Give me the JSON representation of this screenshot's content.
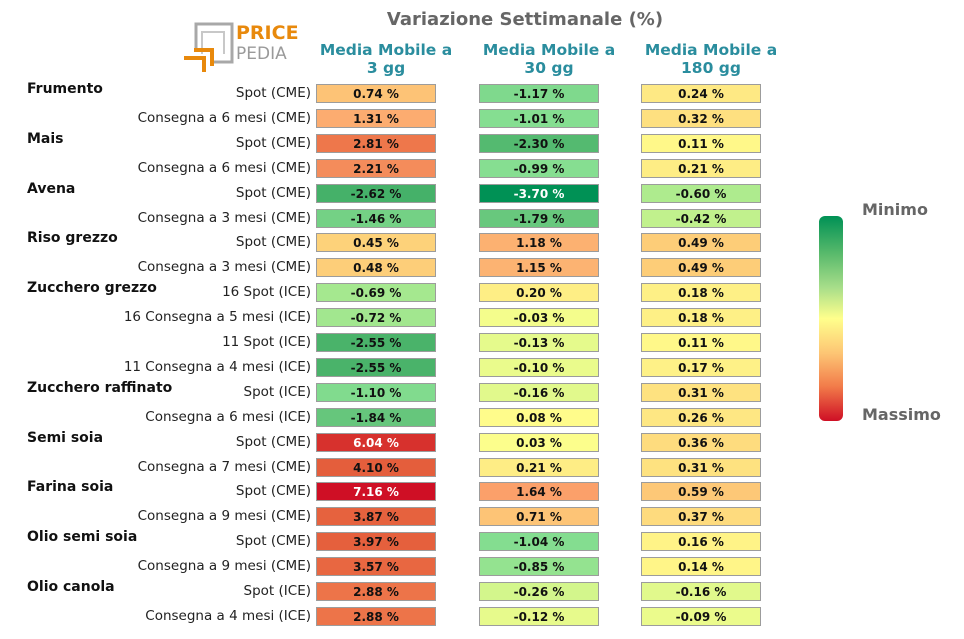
{
  "header": {
    "title": "Variazione Settimanale (%)",
    "logo_top": "PRICE",
    "logo_bottom": "PEDIA"
  },
  "legend": {
    "top_label": "Minimo",
    "bottom_label": "Massimo"
  },
  "colors": {
    "title": "#666666",
    "column_header": "#2a8d9e",
    "logo_orange": "#e8890c",
    "logo_gray": "#9a9a9a",
    "scale": [
      "#009155",
      "#57b96b",
      "#a8de8a",
      "#ffff8c",
      "#fdc574",
      "#f27c4a",
      "#cf0f25"
    ]
  },
  "chart_data": {
    "type": "table",
    "title": "Variazione Settimanale (%)",
    "columns": [
      "Media Mobile a\n3 gg",
      "Media Mobile a\n30 gg",
      "Media Mobile a\n180 gg"
    ],
    "groups": [
      "Frumento",
      "Mais",
      "Avena",
      "Riso grezzo",
      "Zucchero grezzo",
      "Zucchero raffinato",
      "Semi soia",
      "Farina soia",
      "Olio semi soia",
      "Olio canola"
    ],
    "rows": [
      {
        "group": "Frumento",
        "label": "Spot (CME)",
        "values": [
          0.74,
          -1.17,
          0.24
        ],
        "text": [
          "0.74 %",
          "-1.17 %",
          "0.24 %"
        ]
      },
      {
        "group": "Frumento",
        "label": "Consegna a 6 mesi (CME)",
        "values": [
          1.31,
          -1.01,
          0.32
        ],
        "text": [
          "1.31 %",
          "-1.01 %",
          "0.32 %"
        ]
      },
      {
        "group": "Mais",
        "label": "Spot (CME)",
        "values": [
          2.81,
          -2.3,
          0.11
        ],
        "text": [
          "2.81 %",
          "-2.30 %",
          "0.11 %"
        ]
      },
      {
        "group": "Mais",
        "label": "Consegna a 6 mesi (CME)",
        "values": [
          2.21,
          -0.99,
          0.21
        ],
        "text": [
          "2.21 %",
          "-0.99 %",
          "0.21 %"
        ]
      },
      {
        "group": "Avena",
        "label": "Spot (CME)",
        "values": [
          -2.62,
          -3.7,
          -0.6
        ],
        "text": [
          "-2.62 %",
          "-3.70 %",
          "-0.60 %"
        ]
      },
      {
        "group": "Avena",
        "label": "Consegna a 3 mesi (CME)",
        "values": [
          -1.46,
          -1.79,
          -0.42
        ],
        "text": [
          "-1.46 %",
          "-1.79 %",
          "-0.42 %"
        ]
      },
      {
        "group": "Riso grezzo",
        "label": "Spot (CME)",
        "values": [
          0.45,
          1.18,
          0.49
        ],
        "text": [
          "0.45 %",
          "1.18 %",
          "0.49 %"
        ]
      },
      {
        "group": "Riso grezzo",
        "label": "Consegna a 3 mesi (CME)",
        "values": [
          0.48,
          1.15,
          0.49
        ],
        "text": [
          "0.48 %",
          "1.15 %",
          "0.49 %"
        ]
      },
      {
        "group": "Zucchero grezzo",
        "label": "16 Spot (ICE)",
        "values": [
          -0.69,
          0.2,
          0.18
        ],
        "text": [
          "-0.69 %",
          "0.20 %",
          "0.18 %"
        ]
      },
      {
        "group": "Zucchero grezzo",
        "label": "16 Consegna a 5 mesi (ICE)",
        "values": [
          -0.72,
          -0.03,
          0.18
        ],
        "text": [
          "-0.72 %",
          "-0.03 %",
          "0.18 %"
        ]
      },
      {
        "group": "Zucchero grezzo",
        "label": "11 Spot (ICE)",
        "values": [
          -2.55,
          -0.13,
          0.11
        ],
        "text": [
          "-2.55 %",
          "-0.13 %",
          "0.11 %"
        ]
      },
      {
        "group": "Zucchero grezzo",
        "label": "11 Consegna a 4 mesi (ICE)",
        "values": [
          -2.55,
          -0.1,
          0.17
        ],
        "text": [
          "-2.55 %",
          "-0.10 %",
          "0.17 %"
        ]
      },
      {
        "group": "Zucchero raffinato",
        "label": "Spot (ICE)",
        "values": [
          -1.1,
          -0.16,
          0.31
        ],
        "text": [
          "-1.10 %",
          "-0.16 %",
          "0.31 %"
        ]
      },
      {
        "group": "Zucchero raffinato",
        "label": "Consegna a 6 mesi (ICE)",
        "values": [
          -1.84,
          0.08,
          0.26
        ],
        "text": [
          "-1.84 %",
          "0.08 %",
          "0.26 %"
        ]
      },
      {
        "group": "Semi soia",
        "label": "Spot (CME)",
        "values": [
          6.04,
          0.03,
          0.36
        ],
        "text": [
          "6.04 %",
          "0.03 %",
          "0.36 %"
        ]
      },
      {
        "group": "Semi soia",
        "label": "Consegna a 7 mesi (CME)",
        "values": [
          4.1,
          0.21,
          0.31
        ],
        "text": [
          "4.10 %",
          "0.21 %",
          "0.31 %"
        ]
      },
      {
        "group": "Farina soia",
        "label": "Spot (CME)",
        "values": [
          7.16,
          1.64,
          0.59
        ],
        "text": [
          "7.16 %",
          "1.64 %",
          "0.59 %"
        ]
      },
      {
        "group": "Farina soia",
        "label": "Consegna a 9 mesi (CME)",
        "values": [
          3.87,
          0.71,
          0.37
        ],
        "text": [
          "3.87 %",
          "0.71 %",
          "0.37 %"
        ]
      },
      {
        "group": "Olio semi soia",
        "label": "Spot (CME)",
        "values": [
          3.97,
          -1.04,
          0.16
        ],
        "text": [
          "3.97 %",
          "-1.04 %",
          "0.16 %"
        ]
      },
      {
        "group": "Olio semi soia",
        "label": "Consegna a 9 mesi (CME)",
        "values": [
          3.57,
          -0.85,
          0.14
        ],
        "text": [
          "3.57 %",
          "-0.85 %",
          "0.14 %"
        ]
      },
      {
        "group": "Olio canola",
        "label": "Spot (ICE)",
        "values": [
          2.88,
          -0.26,
          -0.16
        ],
        "text": [
          "2.88 %",
          "-0.26 %",
          "-0.16 %"
        ]
      },
      {
        "group": "Olio canola",
        "label": "Consegna a 4 mesi (ICE)",
        "values": [
          2.88,
          -0.12,
          -0.09
        ],
        "text": [
          "2.88 %",
          "-0.12 %",
          "-0.09 %"
        ]
      }
    ]
  }
}
